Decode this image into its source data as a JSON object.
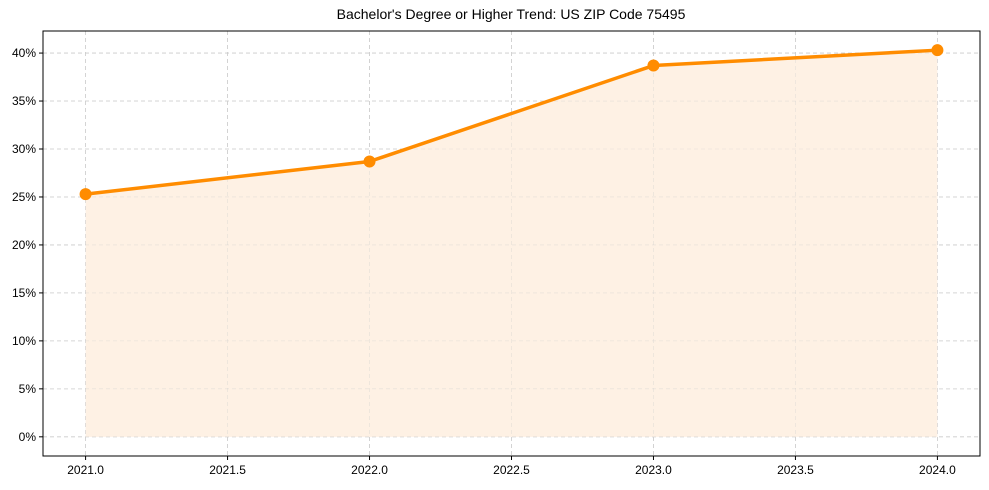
{
  "chart_data": {
    "type": "line",
    "title": "Bachelor's Degree or Higher Trend: US ZIP Code 75495",
    "xlabel": "",
    "ylabel": "",
    "x": [
      2021.0,
      2022.0,
      2023.0,
      2024.0
    ],
    "series": [
      {
        "name": "Bachelor's Degree or Higher",
        "values": [
          25.3,
          28.7,
          38.7,
          40.3
        ],
        "unit": "%"
      }
    ],
    "x_ticks": [
      "2021.0",
      "2021.5",
      "2022.0",
      "2022.5",
      "2023.0",
      "2023.5",
      "2024.0"
    ],
    "x_tick_values": [
      2021.0,
      2021.5,
      2022.0,
      2022.5,
      2023.0,
      2023.5,
      2024.0
    ],
    "y_ticks": [
      "0%",
      "5%",
      "10%",
      "15%",
      "20%",
      "25%",
      "30%",
      "35%",
      "40%"
    ],
    "y_tick_values": [
      0,
      5,
      10,
      15,
      20,
      25,
      30,
      35,
      40
    ],
    "xlim": [
      2020.85,
      2024.15
    ],
    "ylim": [
      -2.0,
      42.3
    ],
    "grid": true,
    "grid_style": "dashed",
    "legend": null,
    "area_fill": true,
    "colors": {
      "line": "#FF8C00",
      "marker": "#FF8C00",
      "fill": "#FEF1E4",
      "grid": "#CCCCCC",
      "axis": "#000000"
    }
  }
}
